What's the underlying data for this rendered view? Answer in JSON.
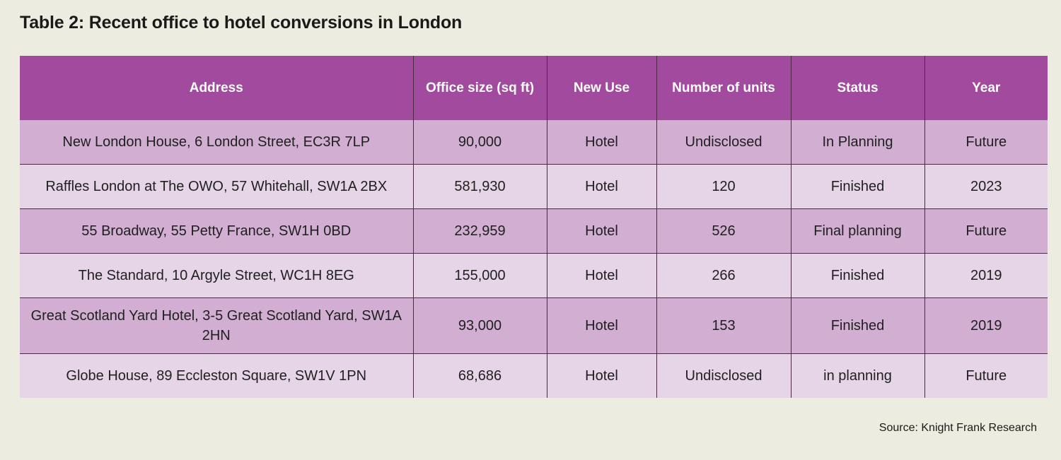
{
  "title": "Table 2: Recent office to hotel conversions in London",
  "table": {
    "headers": [
      "Address",
      "Office size (sq ft)",
      "New Use",
      "Number of units",
      "Status",
      "Year"
    ],
    "rows": [
      [
        "New London House, 6 London Street, EC3R 7LP",
        "90,000",
        "Hotel",
        "Undisclosed",
        "In Planning",
        "Future"
      ],
      [
        "Raffles London at The OWO, 57 Whitehall, SW1A 2BX",
        "581,930",
        "Hotel",
        "120",
        "Finished",
        "2023"
      ],
      [
        "55 Broadway, 55 Petty France, SW1H 0BD",
        "232,959",
        "Hotel",
        "526",
        "Final planning",
        "Future"
      ],
      [
        "The Standard, 10 Argyle Street, WC1H 8EG",
        "155,000",
        "Hotel",
        "266",
        "Finished",
        "2019"
      ],
      [
        "Great Scotland Yard Hotel, 3-5 Great Scotland Yard, SW1A 2HN",
        "93,000",
        "Hotel",
        "153",
        "Finished",
        "2019"
      ],
      [
        "Globe House, 89 Eccleston Square, SW1V 1PN",
        "68,686",
        "Hotel",
        "Undisclosed",
        "in planning",
        "Future"
      ]
    ]
  },
  "source": "Source: Knight Frank Research",
  "colors": {
    "background": "#ecede0",
    "header": "#a24a9e",
    "row_dark": "#d1aed2",
    "row_light": "#e6d5e7"
  }
}
